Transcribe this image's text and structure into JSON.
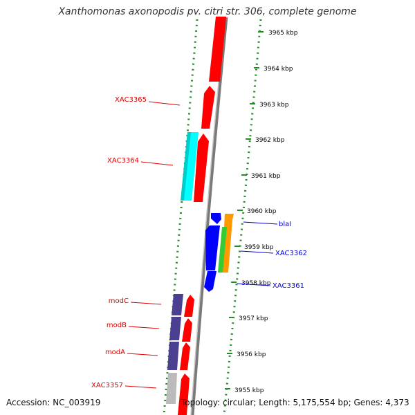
{
  "header": {
    "title": "Xanthomonas axonopodis pv. citri str. 306, complete genome"
  },
  "footer": {
    "accession": "Accession: NC_003919",
    "summary": "Topology: circular; Length: 5,175,554 bp; Genes: 4,373"
  },
  "colors": {
    "forward_gene": "#ff0000",
    "reverse_gene": "#0000ff",
    "cyan_gene": "#00ffff",
    "orange_gene": "#ff9900",
    "green_gene": "#33cc33",
    "purple_gene": "#4b3f91",
    "grey_gene": "#bbbbbb",
    "backbone": "#888888",
    "tick_color": "#228b22",
    "left_label_color": "#dd0000",
    "right_label_color": "#0000cc"
  },
  "scale_labels": [
    "3965 kbp",
    "3964 kbp",
    "3963 kbp",
    "3962 kbp",
    "3961 kbp",
    "3960 kbp",
    "3959 kbp",
    "3958 kbp",
    "3957 kbp",
    "3956 kbp",
    "3955 kbp"
  ],
  "gene_labels_left": [
    "XAC3365",
    "XAC3364",
    "modC",
    "modB",
    "modA",
    "XAC3357"
  ],
  "gene_labels_right": [
    "blaI",
    "XAC3362",
    "XAC3361"
  ]
}
